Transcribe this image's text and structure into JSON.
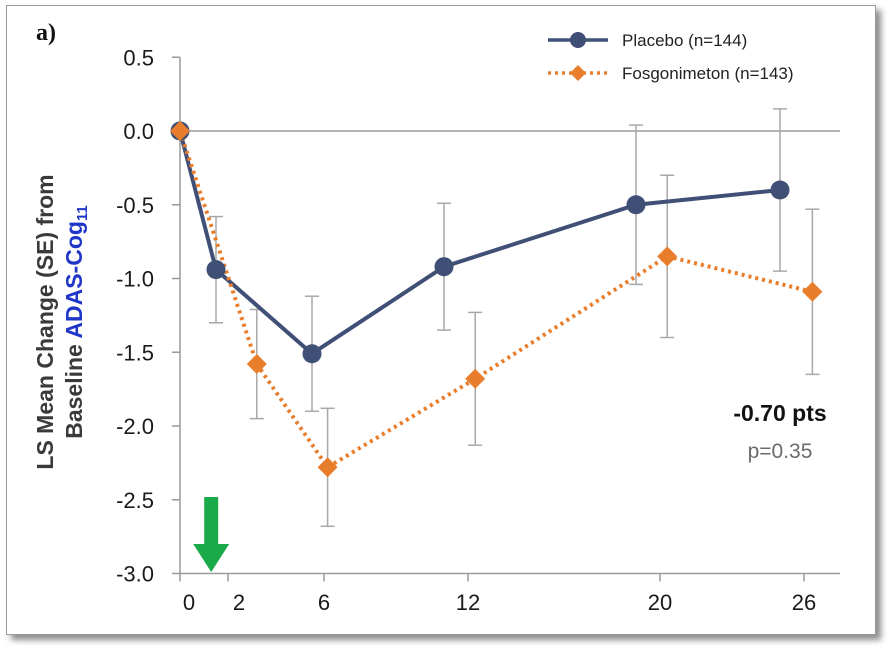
{
  "chart_data": {
    "type": "line",
    "panel_label": "a)",
    "ylabel_line1": "LS Mean Change (SE) from",
    "ylabel_line2_prefix": "Baseline ",
    "ylabel_line2_highlight": "ADAS-Cog",
    "ylabel_subscript": "11",
    "xlabel": "",
    "x": [
      0,
      2,
      6,
      12,
      20,
      26
    ],
    "xlim": [
      0,
      28
    ],
    "ylim": [
      -3.0,
      0.5
    ],
    "yticks": [
      "0.5",
      "0.0",
      "-0.5",
      "-1.0",
      "-1.5",
      "-2.0",
      "-2.5",
      "-3.0"
    ],
    "xticks": [
      "0",
      "2",
      "6",
      "12",
      "20",
      "26"
    ],
    "series": [
      {
        "name": "Placebo (n=144)",
        "color": "#3f4f75",
        "style": "solid",
        "marker": "circle",
        "values": [
          0.0,
          -0.94,
          -1.51,
          -0.92,
          -0.5,
          -0.4
        ],
        "errors": [
          0.0,
          0.36,
          0.39,
          0.43,
          0.54,
          0.55
        ]
      },
      {
        "name": "Fosgonimeton (n=143)",
        "color": "#e87d2c",
        "style": "dotted",
        "marker": "diamond",
        "values": [
          0.0,
          -1.58,
          -2.28,
          -1.68,
          -0.85,
          -1.09
        ],
        "errors": [
          0.0,
          0.37,
          0.4,
          0.45,
          0.55,
          0.56
        ]
      }
    ],
    "annotation": {
      "main": "-0.70 pts",
      "sub": "p=0.35"
    },
    "arrow_color": "#1aaa4a",
    "grid": false,
    "legend_position": "top-right"
  }
}
